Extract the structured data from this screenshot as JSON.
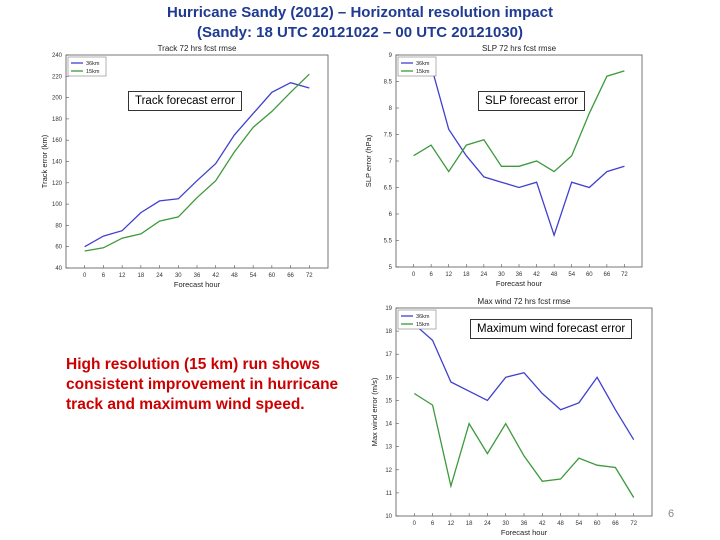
{
  "page": {
    "title_line1": "Hurricane Sandy (2012) – Horizontal resolution impact",
    "title_line2": "(Sandy: 18 UTC 20121022 – 00 UTC 20121030)",
    "note": "High resolution (15 km) run shows consistent improvement in hurricane track and maximum wind speed.",
    "page_number": "6",
    "callouts": {
      "track": "Track forecast error",
      "slp": "SLP forecast error",
      "wind": "Maximum wind forecast error"
    }
  },
  "colors": {
    "series_36km": "#4040d0",
    "series_15km": "#3c9a3c"
  },
  "chart_data": [
    {
      "type": "line",
      "title": "Track 72 hrs fcst rmse",
      "xlabel": "Forecast hour",
      "ylabel": "Track error (km)",
      "x": [
        0,
        6,
        12,
        18,
        24,
        30,
        36,
        42,
        48,
        54,
        60,
        66,
        72
      ],
      "xticks": [
        "0",
        "6",
        "12",
        "18",
        "24",
        "30",
        "36",
        "42",
        "48",
        "54",
        "60",
        "66",
        "72"
      ],
      "yticks": [
        "40",
        "60",
        "80",
        "100",
        "120",
        "140",
        "160",
        "180",
        "200",
        "220",
        "240"
      ],
      "xlim": [
        -6,
        78
      ],
      "ylim": [
        40,
        240
      ],
      "series": [
        {
          "name": "36km",
          "values": [
            60,
            70,
            75,
            92,
            103,
            105,
            122,
            138,
            165,
            185,
            205,
            214,
            209
          ]
        },
        {
          "name": "15km",
          "values": [
            56,
            59,
            68,
            72,
            84,
            88,
            106,
            122,
            149,
            172,
            187,
            205,
            222
          ]
        }
      ]
    },
    {
      "type": "line",
      "title": "SLP 72 hrs fcst rmse",
      "xlabel": "Forecast hour",
      "ylabel": "SLP error (hPa)",
      "x": [
        0,
        6,
        12,
        18,
        24,
        30,
        36,
        42,
        48,
        54,
        60,
        66,
        72
      ],
      "xticks": [
        "0",
        "6",
        "12",
        "18",
        "24",
        "30",
        "36",
        "42",
        "48",
        "54",
        "60",
        "66",
        "72"
      ],
      "yticks": [
        "5",
        "5.5",
        "6",
        "6.5",
        "7",
        "7.5",
        "8",
        "8.5",
        "9"
      ],
      "xlim": [
        -6,
        78
      ],
      "ylim": [
        5,
        9
      ],
      "series": [
        {
          "name": "36km",
          "values": [
            8.7,
            8.8,
            7.6,
            7.1,
            6.7,
            6.6,
            6.5,
            6.6,
            5.6,
            6.6,
            6.5,
            6.8,
            6.9
          ]
        },
        {
          "name": "15km",
          "values": [
            7.1,
            7.3,
            6.8,
            7.3,
            7.4,
            6.9,
            6.9,
            7.0,
            6.8,
            7.1,
            7.9,
            8.6,
            8.7
          ]
        }
      ]
    },
    {
      "type": "line",
      "title": "Max wind 72 hrs fcst rmse",
      "xlabel": "Forecast hour",
      "ylabel": "Max wind error (m/s)",
      "x": [
        0,
        6,
        12,
        18,
        24,
        30,
        36,
        42,
        48,
        54,
        60,
        66,
        72
      ],
      "xticks": [
        "0",
        "6",
        "12",
        "18",
        "24",
        "30",
        "36",
        "42",
        "48",
        "54",
        "60",
        "66",
        "72"
      ],
      "yticks": [
        "10",
        "11",
        "12",
        "13",
        "14",
        "15",
        "16",
        "17",
        "18",
        "19"
      ],
      "xlim": [
        -6,
        78
      ],
      "ylim": [
        10,
        19
      ],
      "series": [
        {
          "name": "36km",
          "values": [
            18.3,
            17.6,
            15.8,
            15.4,
            15.0,
            16.0,
            16.2,
            15.3,
            14.6,
            14.9,
            16.0,
            14.6,
            13.3
          ]
        },
        {
          "name": "15km",
          "values": [
            15.3,
            14.8,
            11.3,
            14.0,
            12.7,
            14.0,
            12.6,
            11.5,
            11.6,
            12.5,
            12.2,
            12.1,
            10.8
          ]
        }
      ]
    }
  ]
}
